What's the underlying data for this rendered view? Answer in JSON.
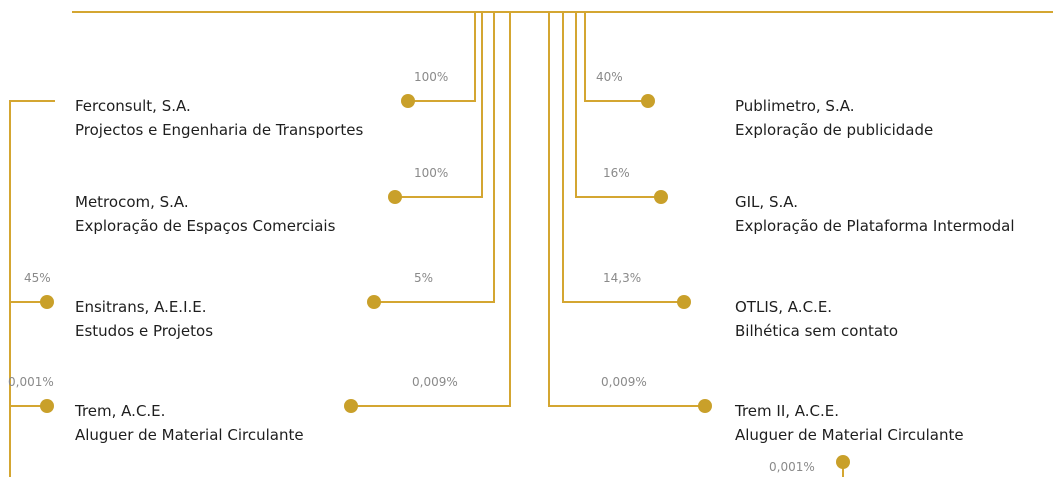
{
  "left": [
    {
      "name": "Ferconsult, S.A.",
      "description": "Projectos e Engenharia de Transportes",
      "share": "100%"
    },
    {
      "name": "Metrocom, S.A.",
      "description": "Exploração de Espaços Comerciais",
      "share": "100%"
    },
    {
      "name": "Ensitrans, A.E.I.E.",
      "description": "Estudos e Projetos",
      "share": "5%",
      "side_share": "45%"
    },
    {
      "name": "Trem, A.C.E.",
      "description": "Aluguer de Material Circulante",
      "share": "0,009%",
      "side_share": "0,001%"
    }
  ],
  "right": [
    {
      "name": "Publimetro, S.A.",
      "description": "Exploração de publicidade",
      "share": "40%"
    },
    {
      "name": "GIL, S.A.",
      "description": "Exploração de Plataforma Intermodal",
      "share": "16%"
    },
    {
      "name": "OTLIS, A.C.E.",
      "description": "Bilhética sem contato",
      "share": "14,3%"
    },
    {
      "name": "Trem II, A.C.E.",
      "description": "Aluguer de Material Circulante",
      "share": "0,009%"
    }
  ],
  "extra_share": "0,001%"
}
